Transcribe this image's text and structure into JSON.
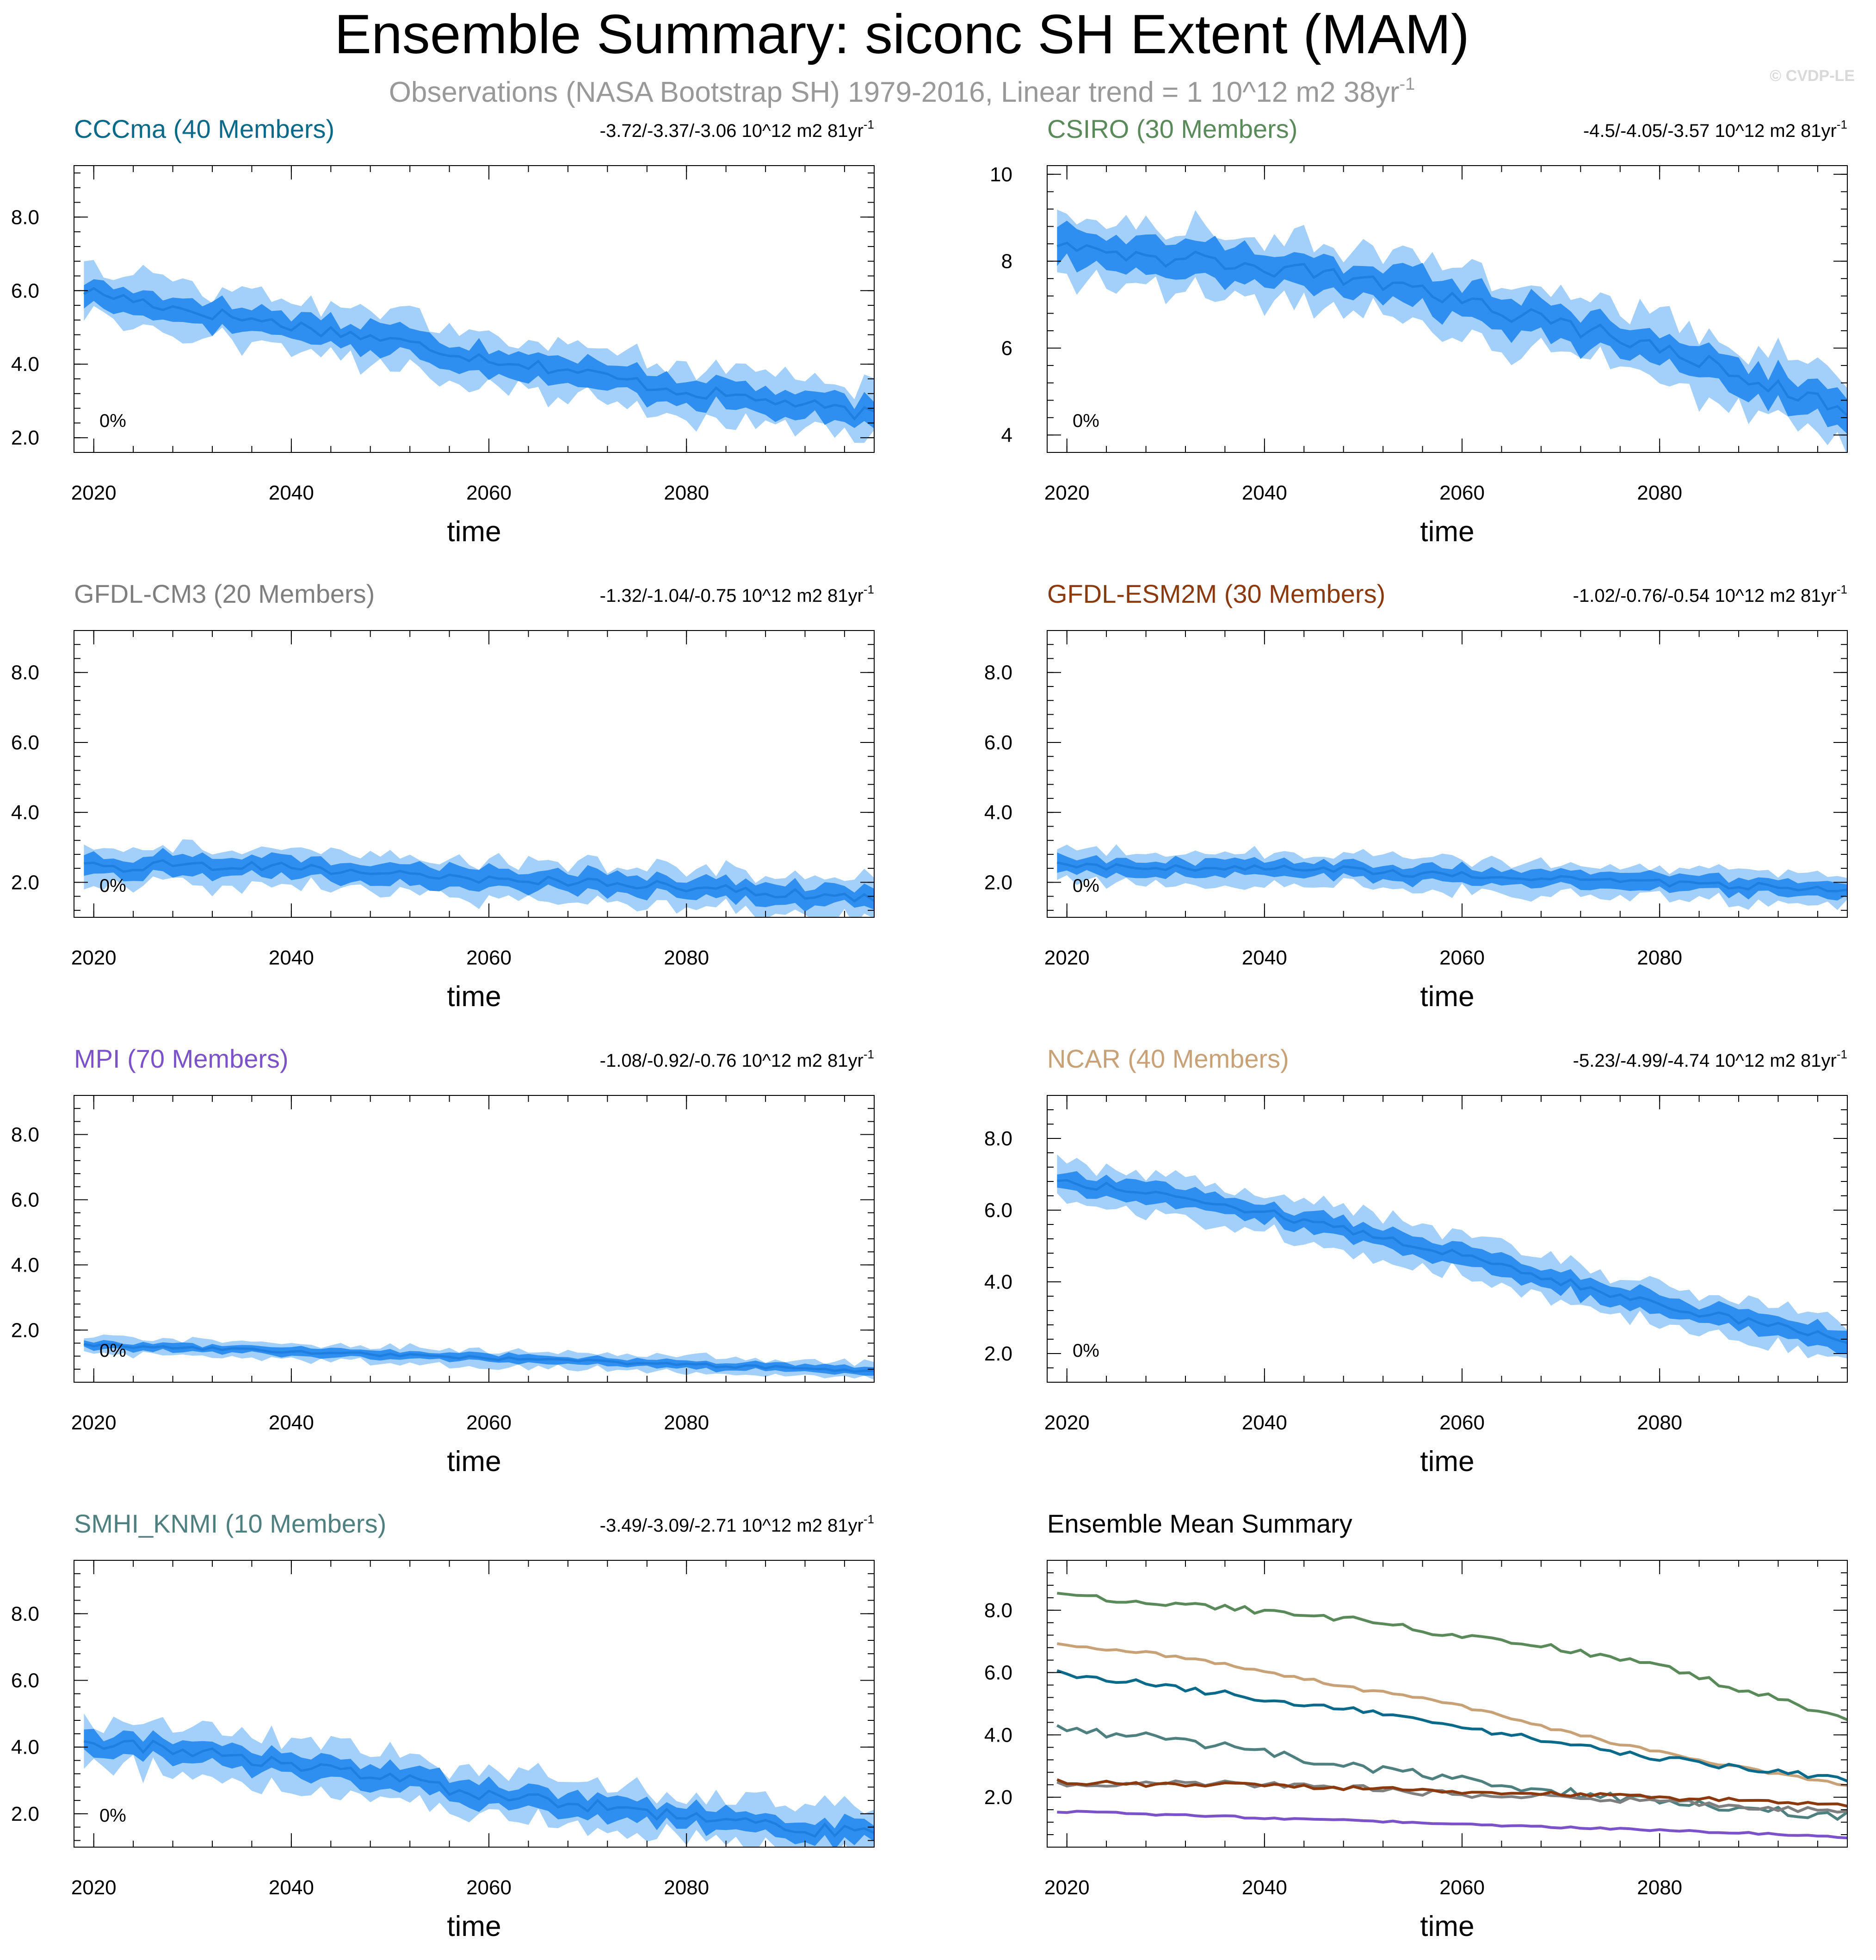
{
  "figure": {
    "title": "Ensemble Summary: siconc SH Extent (MAM)",
    "subtitle": "Observations (NASA Bootstrap SH) 1979-2016, Linear trend = 1 10^12 m2 38yr",
    "subtitle_sup": "-1",
    "credit": "© CVDP-LE"
  },
  "colors": {
    "band_outer": "#a3d0fa",
    "band_inner": "#2e8ff0",
    "mean_line": "#1f7fe0",
    "axis": "#000000"
  },
  "chart_data": [
    {
      "type": "area",
      "title": "CCCma (40 Members)",
      "title_color": "#0b6a8a",
      "trend": "-3.72/-3.37/-3.06 10^12 m2 81yr",
      "trend_sup": "-1",
      "annotation": "0%",
      "xlabel": "time",
      "xlim": [
        2018,
        2099
      ],
      "ylim": [
        1.6,
        9.4
      ],
      "yticks": [
        2.0,
        4.0,
        6.0,
        8.0
      ],
      "ytick_labels": [
        "2.0",
        "4.0",
        "6.0",
        "8.0"
      ],
      "xticks": [
        2020,
        2040,
        2060,
        2080
      ],
      "x": [
        2019,
        2029,
        2039,
        2049,
        2059,
        2069,
        2079,
        2089,
        2099
      ],
      "mean": [
        6.0,
        5.5,
        5.1,
        4.7,
        4.2,
        3.8,
        3.3,
        3.0,
        2.6
      ],
      "outer_spread": 0.7,
      "inner_spread": 0.35,
      "noise": 0.18
    },
    {
      "type": "area",
      "title": "CSIRO (30 Members)",
      "title_color": "#5a8a5a",
      "trend": "-4.5/-4.05/-3.57 10^12 m2 81yr",
      "trend_sup": "-1",
      "annotation": "0%",
      "xlabel": "time",
      "xlim": [
        2018,
        2099
      ],
      "ylim": [
        3.6,
        10.2
      ],
      "yticks": [
        4,
        6,
        8,
        10
      ],
      "ytick_labels": [
        "4",
        "6",
        "8",
        "10"
      ],
      "xticks": [
        2020,
        2040,
        2060,
        2080
      ],
      "x": [
        2019,
        2029,
        2039,
        2049,
        2059,
        2069,
        2079,
        2089,
        2099
      ],
      "mean": [
        8.5,
        8.1,
        7.9,
        7.6,
        7.1,
        6.6,
        6.1,
        5.3,
        4.6
      ],
      "outer_spread": 0.75,
      "inner_spread": 0.38,
      "noise": 0.2
    },
    {
      "type": "area",
      "title": "GFDL-CM3 (20 Members)",
      "title_color": "#7f7f7f",
      "trend": "-1.32/-1.04/-0.75 10^12 m2 81yr",
      "trend_sup": "-1",
      "annotation": "0%",
      "xlabel": "time",
      "xlim": [
        2018,
        2099
      ],
      "ylim": [
        1.0,
        9.2
      ],
      "yticks": [
        2.0,
        4.0,
        6.0,
        8.0
      ],
      "ytick_labels": [
        "2.0",
        "4.0",
        "6.0",
        "8.0"
      ],
      "xticks": [
        2020,
        2040,
        2060,
        2080
      ],
      "x": [
        2019,
        2029,
        2039,
        2049,
        2059,
        2069,
        2079,
        2089,
        2099
      ],
      "mean": [
        2.4,
        2.5,
        2.5,
        2.2,
        2.1,
        2.0,
        1.9,
        1.7,
        1.5
      ],
      "outer_spread": 0.55,
      "inner_spread": 0.28,
      "noise": 0.15
    },
    {
      "type": "area",
      "title": "GFDL-ESM2M (30 Members)",
      "title_color": "#8b3a0f",
      "trend": "-1.02/-0.76/-0.54 10^12 m2 81yr",
      "trend_sup": "-1",
      "annotation": "0%",
      "xlabel": "time",
      "xlim": [
        2018,
        2099
      ],
      "ylim": [
        1.0,
        9.2
      ],
      "yticks": [
        2.0,
        4.0,
        6.0,
        8.0
      ],
      "ytick_labels": [
        "2.0",
        "4.0",
        "6.0",
        "8.0"
      ],
      "xticks": [
        2020,
        2040,
        2060,
        2080
      ],
      "x": [
        2019,
        2029,
        2039,
        2049,
        2059,
        2069,
        2079,
        2089,
        2099
      ],
      "mean": [
        2.5,
        2.4,
        2.4,
        2.35,
        2.2,
        2.1,
        2.0,
        1.9,
        1.75
      ],
      "outer_spread": 0.45,
      "inner_spread": 0.22,
      "noise": 0.1
    },
    {
      "type": "area",
      "title": "MPI (70 Members)",
      "title_color": "#7b52c8",
      "trend": "-1.08/-0.92/-0.76 10^12 m2 81yr",
      "trend_sup": "-1",
      "annotation": "0%",
      "xlabel": "time",
      "xlim": [
        2018,
        2099
      ],
      "ylim": [
        0.4,
        9.2
      ],
      "yticks": [
        2.0,
        4.0,
        6.0,
        8.0
      ],
      "ytick_labels": [
        "2.0",
        "4.0",
        "6.0",
        "8.0"
      ],
      "xticks": [
        2020,
        2040,
        2060,
        2080
      ],
      "x": [
        2019,
        2029,
        2039,
        2049,
        2059,
        2069,
        2079,
        2089,
        2099
      ],
      "mean": [
        1.55,
        1.45,
        1.35,
        1.25,
        1.15,
        1.05,
        0.95,
        0.85,
        0.7
      ],
      "outer_spread": 0.25,
      "inner_spread": 0.12,
      "noise": 0.05
    },
    {
      "type": "area",
      "title": "NCAR (40 Members)",
      "title_color": "#c9a177",
      "trend": "-5.23/-4.99/-4.74 10^12 m2 81yr",
      "trend_sup": "-1",
      "annotation": "0%",
      "xlabel": "time",
      "xlim": [
        2018,
        2099
      ],
      "ylim": [
        1.2,
        9.2
      ],
      "yticks": [
        2.0,
        4.0,
        6.0,
        8.0
      ],
      "ytick_labels": [
        "2.0",
        "4.0",
        "6.0",
        "8.0"
      ],
      "xticks": [
        2020,
        2040,
        2060,
        2080
      ],
      "x": [
        2019,
        2029,
        2039,
        2049,
        2059,
        2069,
        2079,
        2089,
        2099
      ],
      "mean": [
        6.8,
        6.5,
        6.0,
        5.4,
        4.8,
        4.1,
        3.4,
        2.9,
        2.35
      ],
      "outer_spread": 0.55,
      "inner_spread": 0.28,
      "noise": 0.12
    },
    {
      "type": "area",
      "title": "SMHI_KNMI (10 Members)",
      "title_color": "#4f8080",
      "trend": "-3.49/-3.09/-2.71 10^12 m2 81yr",
      "trend_sup": "-1",
      "annotation": "0%",
      "xlabel": "time",
      "xlim": [
        2018,
        2099
      ],
      "ylim": [
        1.0,
        9.6
      ],
      "yticks": [
        2.0,
        4.0,
        6.0,
        8.0
      ],
      "ytick_labels": [
        "2.0",
        "4.0",
        "6.0",
        "8.0"
      ],
      "xticks": [
        2020,
        2040,
        2060,
        2080
      ],
      "x": [
        2019,
        2029,
        2039,
        2049,
        2059,
        2069,
        2079,
        2089,
        2099
      ],
      "mean": [
        4.2,
        3.9,
        3.5,
        3.1,
        2.6,
        2.3,
        1.9,
        1.6,
        1.4
      ],
      "outer_spread": 0.7,
      "inner_spread": 0.32,
      "noise": 0.2
    },
    {
      "type": "line",
      "title": "Ensemble Mean Summary",
      "title_color": "#000000",
      "xlabel": "time",
      "xlim": [
        2018,
        2099
      ],
      "ylim": [
        0.4,
        9.6
      ],
      "yticks": [
        2.0,
        4.0,
        6.0,
        8.0
      ],
      "ytick_labels": [
        "2.0",
        "4.0",
        "6.0",
        "8.0"
      ],
      "xticks": [
        2020,
        2040,
        2060,
        2080
      ],
      "x": [
        2019,
        2029,
        2039,
        2049,
        2059,
        2069,
        2079,
        2089,
        2099
      ],
      "series": [
        {
          "name": "CSIRO",
          "color": "#5a8a5a",
          "values": [
            8.5,
            8.2,
            8.0,
            7.7,
            7.2,
            6.8,
            6.3,
            5.4,
            4.5
          ],
          "noise": 0.1
        },
        {
          "name": "NCAR",
          "color": "#c9a177",
          "values": [
            6.9,
            6.6,
            6.1,
            5.5,
            5.0,
            4.2,
            3.5,
            2.9,
            2.4
          ],
          "noise": 0.05
        },
        {
          "name": "CCCma",
          "color": "#0b6a8a",
          "values": [
            6.0,
            5.6,
            5.2,
            4.8,
            4.3,
            3.8,
            3.3,
            2.9,
            2.6
          ],
          "noise": 0.1
        },
        {
          "name": "SMHI_KNMI",
          "color": "#4f8080",
          "values": [
            4.2,
            3.9,
            3.5,
            3.0,
            2.6,
            2.2,
            1.9,
            1.6,
            1.4
          ],
          "noise": 0.14
        },
        {
          "name": "GFDL-CM3",
          "color": "#7f7f7f",
          "values": [
            2.4,
            2.5,
            2.4,
            2.3,
            2.1,
            2.0,
            1.9,
            1.7,
            1.5
          ],
          "noise": 0.1
        },
        {
          "name": "GFDL-ESM2M",
          "color": "#8b3a0f",
          "values": [
            2.5,
            2.4,
            2.4,
            2.3,
            2.2,
            2.1,
            2.0,
            1.9,
            1.7
          ],
          "noise": 0.07
        },
        {
          "name": "MPI",
          "color": "#7b52c8",
          "values": [
            1.55,
            1.45,
            1.35,
            1.25,
            1.15,
            1.05,
            0.95,
            0.85,
            0.7
          ],
          "noise": 0.03
        }
      ]
    }
  ]
}
